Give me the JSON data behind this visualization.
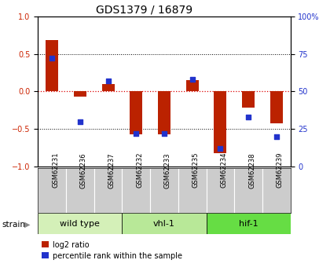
{
  "title": "GDS1379 / 16879",
  "samples": [
    "GSM62231",
    "GSM62236",
    "GSM62237",
    "GSM62232",
    "GSM62233",
    "GSM62235",
    "GSM62234",
    "GSM62238",
    "GSM62239"
  ],
  "log2_ratio": [
    0.68,
    -0.07,
    0.1,
    -0.57,
    -0.57,
    0.15,
    -0.82,
    -0.22,
    -0.42
  ],
  "percentile_rank": [
    72,
    30,
    57,
    22,
    22,
    58,
    12,
    33,
    20
  ],
  "groups": [
    {
      "label": "wild type",
      "start": 0,
      "end": 3,
      "color": "#d4f0b8"
    },
    {
      "label": "vhl-1",
      "start": 3,
      "end": 6,
      "color": "#b8e898"
    },
    {
      "label": "hif-1",
      "start": 6,
      "end": 9,
      "color": "#66dd44"
    }
  ],
  "ylim_left": [
    -1.0,
    1.0
  ],
  "ylim_right": [
    0,
    100
  ],
  "yticks_left": [
    -1,
    -0.5,
    0,
    0.5
  ],
  "ytick_top_left": 1,
  "yticks_right": [
    0,
    25,
    50,
    75,
    100
  ],
  "bar_width": 0.45,
  "red_color": "#bb2200",
  "blue_color": "#2233cc",
  "dot_size": 22,
  "zero_line_color": "#dd0000",
  "tick_color_left": "#cc2200",
  "tick_color_right": "#2233cc",
  "title_fontsize": 10,
  "tick_fontsize": 7,
  "sample_fontsize": 6,
  "group_fontsize": 8,
  "legend_fontsize": 7
}
